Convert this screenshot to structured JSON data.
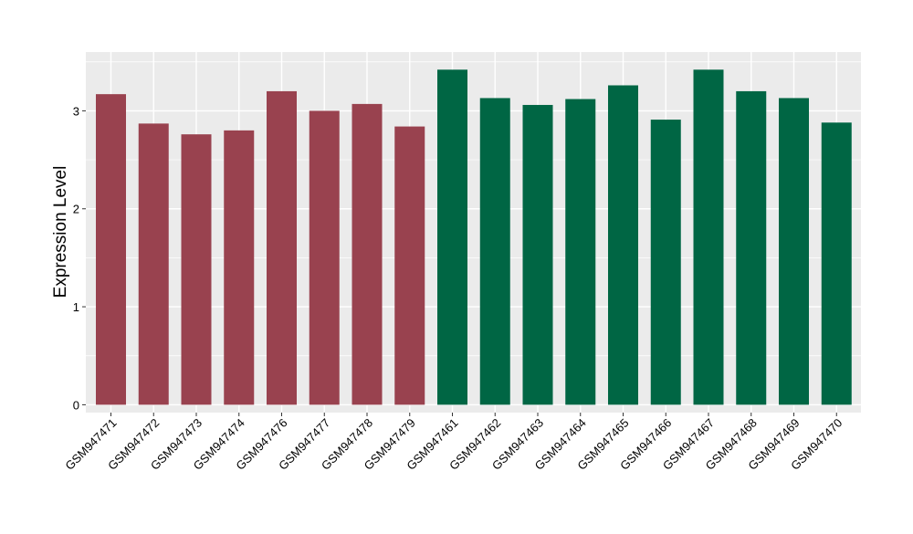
{
  "chart_data": {
    "type": "bar",
    "title": "",
    "xlabel": "",
    "ylabel": "Expression Level",
    "ylim": [
      -0.08,
      3.6
    ],
    "yticks": [
      0,
      1,
      2,
      3
    ],
    "y_minor_ticks": [
      0.5,
      1.5,
      2.5,
      3.5
    ],
    "grid": true,
    "legend": "none",
    "background": "#ebebeb",
    "gridline_color": "#ffffff",
    "categories": [
      "GSM947471",
      "GSM947472",
      "GSM947473",
      "GSM947474",
      "GSM947476",
      "GSM947477",
      "GSM947478",
      "GSM947479",
      "GSM947461",
      "GSM947462",
      "GSM947463",
      "GSM947464",
      "GSM947465",
      "GSM947466",
      "GSM947467",
      "GSM947468",
      "GSM947469",
      "GSM947470"
    ],
    "values": [
      3.17,
      2.87,
      2.76,
      2.8,
      3.2,
      3.0,
      3.07,
      2.84,
      3.42,
      3.13,
      3.06,
      3.12,
      3.26,
      2.91,
      3.42,
      3.2,
      3.13,
      2.88
    ],
    "bar_colors": [
      "#99424f",
      "#99424f",
      "#99424f",
      "#99424f",
      "#99424f",
      "#99424f",
      "#99424f",
      "#99424f",
      "#006644",
      "#006644",
      "#006644",
      "#006644",
      "#006644",
      "#006644",
      "#006644",
      "#006644",
      "#006644",
      "#006644"
    ]
  }
}
